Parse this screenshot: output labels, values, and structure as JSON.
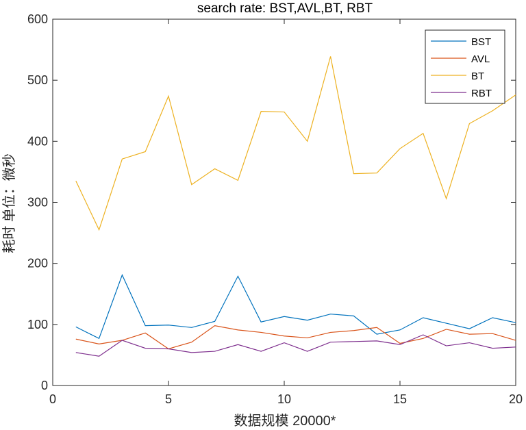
{
  "chart_data": {
    "type": "line",
    "title": "search rate: BST,AVL,BT, RBT",
    "xlabel": "数据规模 20000*",
    "ylabel": "耗时 单位：微秒",
    "xlim": [
      0,
      20
    ],
    "ylim": [
      0,
      600
    ],
    "xticks": [
      0,
      5,
      10,
      15,
      20
    ],
    "yticks": [
      0,
      100,
      200,
      300,
      400,
      500,
      600
    ],
    "grid": false,
    "legend_position": "top-right",
    "x": [
      1,
      2,
      3,
      4,
      5,
      6,
      7,
      8,
      9,
      10,
      11,
      12,
      13,
      14,
      15,
      16,
      17,
      18,
      19,
      20
    ],
    "series": [
      {
        "name": "BST",
        "color": "#0072BD",
        "values": [
          96,
          77,
          181,
          98,
          99,
          95,
          105,
          179,
          104,
          113,
          107,
          117,
          114,
          84,
          91,
          111,
          102,
          93,
          111,
          103
        ]
      },
      {
        "name": "AVL",
        "color": "#D95319",
        "values": [
          76,
          68,
          74,
          86,
          60,
          71,
          98,
          91,
          87,
          81,
          78,
          87,
          90,
          95,
          69,
          77,
          92,
          84,
          85,
          74
        ]
      },
      {
        "name": "BT",
        "color": "#EDB120",
        "values": [
          335,
          255,
          371,
          383,
          474,
          329,
          355,
          336,
          449,
          448,
          400,
          539,
          347,
          348,
          388,
          413,
          306,
          429,
          450,
          476
        ]
      },
      {
        "name": "RBT",
        "color": "#7E2F8E",
        "values": [
          54,
          48,
          74,
          61,
          60,
          54,
          56,
          67,
          56,
          70,
          56,
          71,
          72,
          73,
          67,
          83,
          65,
          70,
          61,
          63
        ]
      }
    ]
  }
}
